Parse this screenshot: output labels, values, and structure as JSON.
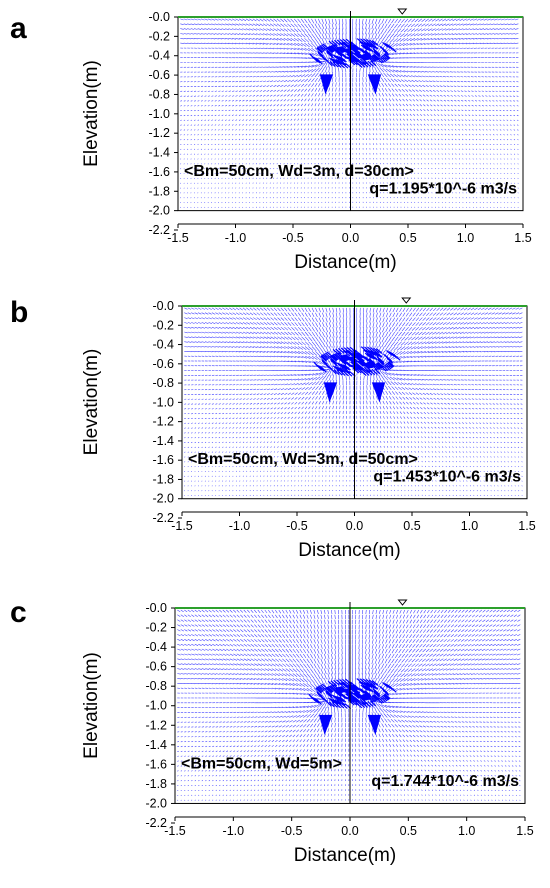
{
  "chart_data": [
    {
      "type": "vector-field",
      "panel_label": "a",
      "xlabel": "Distance(m)",
      "ylabel": "Elevation(m)",
      "xlim": [
        -1.5,
        1.5
      ],
      "ylim": [
        -2.2,
        0.0
      ],
      "data_ylim": [
        -2.0,
        0.0
      ],
      "x_ticks": [
        "-1.5",
        "-1.0",
        "-0.5",
        "0.0",
        "0.5",
        "1.0",
        "1.5"
      ],
      "y_ticks": [
        "-0.0",
        "-0.2",
        "-0.4",
        "-0.6",
        "-0.8",
        "-1.0",
        "-1.2",
        "-1.4",
        "-1.6",
        "-1.8",
        "-2.0",
        "-2.2"
      ],
      "annotation_1": "<Bm=50cm, Wd=3m, d=30cm>",
      "annotation_2": "q=1.195*10^-6 m3/s",
      "drain_depth": -0.3,
      "drain_offset": 0.22,
      "water_table_marker_x": 0.45,
      "water_table_y": 0.0,
      "vector_color": "#0000ff",
      "surface_color": "#2ca02c"
    },
    {
      "type": "vector-field",
      "panel_label": "b",
      "xlabel": "Distance(m)",
      "ylabel": "Elevation(m)",
      "xlim": [
        -1.5,
        1.5
      ],
      "ylim": [
        -2.2,
        0.0
      ],
      "data_ylim": [
        -2.0,
        0.0
      ],
      "x_ticks": [
        "-1.5",
        "-1.0",
        "-0.5",
        "0.0",
        "0.5",
        "1.0",
        "1.5"
      ],
      "y_ticks": [
        "-0.0",
        "-0.2",
        "-0.4",
        "-0.6",
        "-0.8",
        "-1.0",
        "-1.2",
        "-1.4",
        "-1.6",
        "-1.8",
        "-2.0",
        "-2.2"
      ],
      "annotation_1": "<Bm=50cm, Wd=3m, d=50cm>",
      "annotation_2": "q=1.453*10^-6 m3/s",
      "drain_depth": -0.5,
      "drain_offset": 0.22,
      "water_table_marker_x": 0.45,
      "water_table_y": 0.0,
      "vector_color": "#0000ff",
      "surface_color": "#2ca02c"
    },
    {
      "type": "vector-field",
      "panel_label": "c",
      "xlabel": "Distance(m)",
      "ylabel": "Elevation(m)",
      "xlim": [
        -1.5,
        1.5
      ],
      "ylim": [
        -2.2,
        0.0
      ],
      "data_ylim": [
        -2.0,
        0.0
      ],
      "x_ticks": [
        "-1.5",
        "-1.0",
        "-0.5",
        "0.0",
        "0.5",
        "1.0",
        "1.5"
      ],
      "y_ticks": [
        "-0.0",
        "-0.2",
        "-0.4",
        "-0.6",
        "-0.8",
        "-1.0",
        "-1.2",
        "-1.4",
        "-1.6",
        "-1.8",
        "-2.0",
        "-2.2"
      ],
      "annotation_1": "<Bm=50cm, Wd=5m>",
      "annotation_2": "q=1.744*10^-6 m3/s",
      "drain_depth": -0.8,
      "drain_offset": 0.22,
      "water_table_marker_x": 0.45,
      "water_table_y": 0.0,
      "vector_color": "#0000ff",
      "surface_color": "#2ca02c"
    }
  ]
}
